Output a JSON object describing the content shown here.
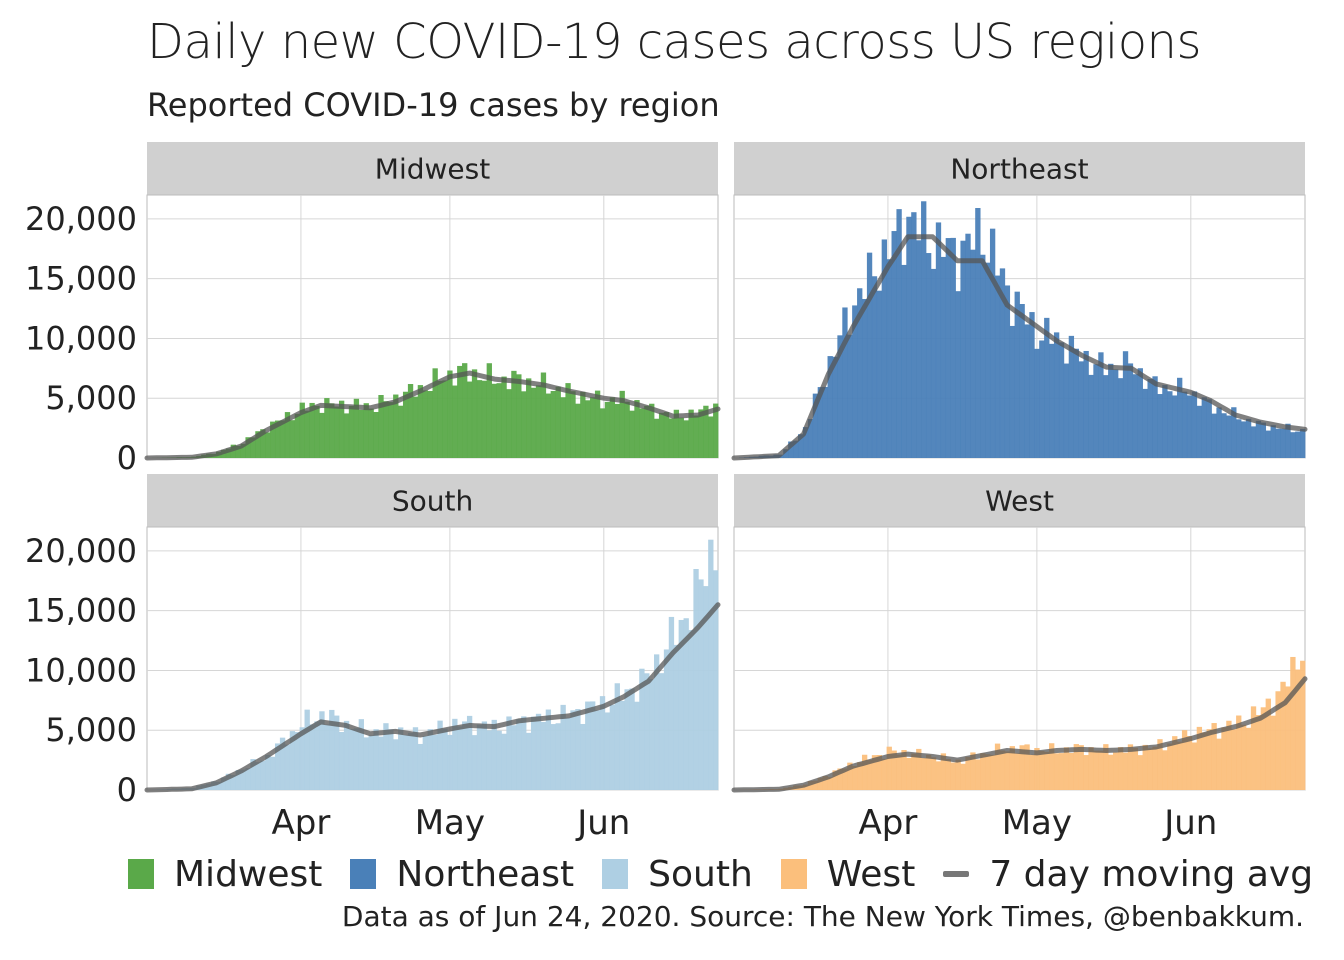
{
  "title": "Daily new COVID-19 cases across US regions",
  "subtitle": "Reported COVID-19 cases by region",
  "caption": "Data as of Jun 24, 2020. Source: The New York Times, @benbakkum.",
  "legend": [
    {
      "label": "Midwest",
      "color": "#5aa949"
    },
    {
      "label": "Northeast",
      "color": "#4a80b8"
    },
    {
      "label": "South",
      "color": "#aecfe3"
    },
    {
      "label": "West",
      "color": "#fbbf7c"
    }
  ],
  "legend_line_label": "7 day moving avg",
  "colors": {
    "panel_strip": "#d0d0d0",
    "grid": "#d6d6d6",
    "moving_avg": "#555555"
  },
  "chart_data": {
    "type": "bar",
    "facets": [
      "Midwest",
      "Northeast",
      "South",
      "West"
    ],
    "x_range": [
      "2020-03-01",
      "2020-06-24"
    ],
    "x_ticks": [
      "Apr",
      "May",
      "Jun"
    ],
    "y_ticks": [
      "0",
      "5,000",
      "10,000",
      "15,000",
      "20,000"
    ],
    "ylim": [
      0,
      22000
    ],
    "series": [
      {
        "name": "Midwest",
        "x_keys": [
          "2020-03-01",
          "2020-03-10",
          "2020-03-15",
          "2020-03-20",
          "2020-03-25",
          "2020-04-01",
          "2020-04-05",
          "2020-04-10",
          "2020-04-15",
          "2020-04-20",
          "2020-04-25",
          "2020-05-01",
          "2020-05-05",
          "2020-05-10",
          "2020-05-15",
          "2020-05-20",
          "2020-05-25",
          "2020-06-01",
          "2020-06-05",
          "2020-06-10",
          "2020-06-15",
          "2020-06-20",
          "2020-06-24"
        ],
        "values": [
          0,
          100,
          500,
          1300,
          2600,
          4100,
          4500,
          4400,
          4300,
          5000,
          5800,
          7000,
          7200,
          6600,
          6500,
          6100,
          5500,
          4800,
          4900,
          4200,
          3500,
          3700,
          4400
        ],
        "moving_avg": [
          0,
          60,
          350,
          1000,
          2300,
          3800,
          4400,
          4300,
          4200,
          4700,
          5600,
          6800,
          7100,
          6600,
          6400,
          6100,
          5600,
          5000,
          4800,
          4200,
          3500,
          3600,
          4100
        ]
      },
      {
        "name": "Northeast",
        "x_keys": [
          "2020-03-01",
          "2020-03-10",
          "2020-03-15",
          "2020-03-20",
          "2020-03-25",
          "2020-04-01",
          "2020-04-05",
          "2020-04-10",
          "2020-04-15",
          "2020-04-20",
          "2020-04-25",
          "2020-05-01",
          "2020-05-05",
          "2020-05-10",
          "2020-05-15",
          "2020-05-20",
          "2020-05-25",
          "2020-06-01",
          "2020-06-05",
          "2020-06-10",
          "2020-06-15",
          "2020-06-20",
          "2020-06-24"
        ],
        "values": [
          0,
          300,
          2500,
          8000,
          13000,
          17500,
          20000,
          18000,
          17000,
          19000,
          14000,
          10500,
          10000,
          8500,
          7500,
          7800,
          6000,
          5600,
          4400,
          3600,
          2800,
          2500,
          2300
        ],
        "moving_avg": [
          0,
          200,
          2000,
          7000,
          11000,
          16000,
          18500,
          18500,
          16500,
          16500,
          12800,
          11000,
          9800,
          8600,
          7600,
          7500,
          6200,
          5500,
          4800,
          3600,
          3000,
          2600,
          2400
        ]
      },
      {
        "name": "South",
        "x_keys": [
          "2020-03-01",
          "2020-03-10",
          "2020-03-15",
          "2020-03-20",
          "2020-03-25",
          "2020-04-01",
          "2020-04-05",
          "2020-04-10",
          "2020-04-15",
          "2020-04-20",
          "2020-04-25",
          "2020-05-01",
          "2020-05-05",
          "2020-05-10",
          "2020-05-15",
          "2020-05-20",
          "2020-05-25",
          "2020-06-01",
          "2020-06-05",
          "2020-06-10",
          "2020-06-15",
          "2020-06-20",
          "2020-06-24"
        ],
        "values": [
          0,
          200,
          800,
          1800,
          2800,
          5500,
          6300,
          5500,
          4800,
          5000,
          4500,
          5400,
          5600,
          5200,
          5700,
          6000,
          6300,
          7200,
          7900,
          9300,
          12500,
          16000,
          21000
        ],
        "moving_avg": [
          0,
          100,
          600,
          1600,
          2800,
          4700,
          5700,
          5400,
          4700,
          4900,
          4600,
          5100,
          5400,
          5300,
          5800,
          6000,
          6200,
          7000,
          7800,
          9100,
          11500,
          13600,
          15500
        ]
      },
      {
        "name": "West",
        "x_keys": [
          "2020-03-01",
          "2020-03-10",
          "2020-03-15",
          "2020-03-20",
          "2020-03-25",
          "2020-04-01",
          "2020-04-05",
          "2020-04-10",
          "2020-04-15",
          "2020-04-20",
          "2020-04-25",
          "2020-05-01",
          "2020-05-05",
          "2020-05-10",
          "2020-05-15",
          "2020-05-20",
          "2020-05-25",
          "2020-06-01",
          "2020-06-05",
          "2020-06-10",
          "2020-06-15",
          "2020-06-20",
          "2020-06-24"
        ],
        "values": [
          0,
          100,
          500,
          1300,
          2300,
          3200,
          3100,
          2800,
          2400,
          3000,
          3500,
          3400,
          3300,
          3500,
          3300,
          3400,
          3600,
          4600,
          5000,
          5400,
          6400,
          8300,
          12000
        ],
        "moving_avg": [
          0,
          60,
          400,
          1100,
          2000,
          2800,
          3000,
          2800,
          2500,
          2900,
          3300,
          3100,
          3300,
          3400,
          3300,
          3400,
          3600,
          4300,
          4800,
          5300,
          6000,
          7300,
          9300
        ]
      }
    ]
  }
}
